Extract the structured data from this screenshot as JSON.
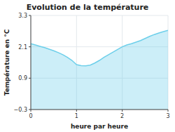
{
  "chart_data": {
    "type": "area",
    "title": "Evolution de la température",
    "x_label": "heure par heure",
    "y_label": "Température en °C",
    "x": [
      0.0,
      0.1,
      0.2,
      0.3,
      0.4,
      0.5,
      0.6,
      0.7,
      0.8,
      0.9,
      1.0,
      1.1,
      1.2,
      1.3,
      1.4,
      1.5,
      1.6,
      1.7,
      1.8,
      1.9,
      2.0,
      2.1,
      2.2,
      2.3,
      2.4,
      2.5,
      2.6,
      2.7,
      2.8,
      2.9,
      3.0
    ],
    "values": [
      2.22,
      2.17,
      2.12,
      2.07,
      2.01,
      1.95,
      1.88,
      1.8,
      1.7,
      1.58,
      1.42,
      1.38,
      1.37,
      1.4,
      1.48,
      1.58,
      1.7,
      1.8,
      1.9,
      2.0,
      2.1,
      2.17,
      2.22,
      2.28,
      2.34,
      2.42,
      2.5,
      2.57,
      2.63,
      2.68,
      2.73
    ],
    "color": "#6dcfea",
    "xlim": [
      0,
      3
    ],
    "ylim": [
      -0.3,
      3.3
    ],
    "xticks": [
      0,
      1,
      2,
      3
    ],
    "yticks": [
      -0.3,
      0.9,
      2.1,
      3.3
    ],
    "grid": true
  }
}
